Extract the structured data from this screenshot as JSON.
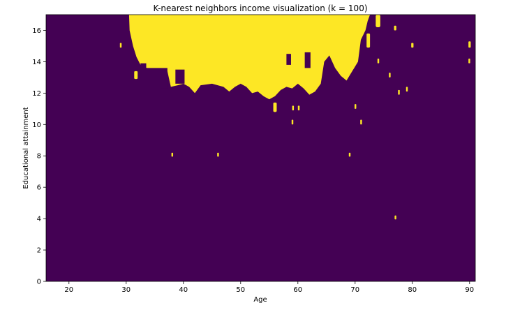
{
  "chart_data": {
    "type": "heatmap",
    "title": "K-nearest neighbors income visualization (k = 100)",
    "xlabel": "Age",
    "ylabel": "Educational attainment",
    "xlim": [
      16,
      91
    ],
    "ylim": [
      0,
      17
    ],
    "xticks": [
      20,
      30,
      40,
      50,
      60,
      70,
      80,
      90
    ],
    "yticks": [
      0,
      2,
      4,
      6,
      8,
      10,
      12,
      14,
      16
    ],
    "colors": {
      "low": "#440154",
      "high": "#fde725"
    },
    "grid": false,
    "high_region_upper_boundary": [
      [
        30.5,
        17
      ],
      [
        30.6,
        16.0
      ],
      [
        31.2,
        15.0
      ],
      [
        31.8,
        14.3
      ],
      [
        32.5,
        13.8
      ],
      [
        33.6,
        13.6
      ],
      [
        36.0,
        13.6
      ],
      [
        37.2,
        13.4
      ],
      [
        37.8,
        12.4
      ],
      [
        39.0,
        12.5
      ],
      [
        40.0,
        12.6
      ],
      [
        41.0,
        12.4
      ],
      [
        42.0,
        12.0
      ],
      [
        43.0,
        12.5
      ],
      [
        45.0,
        12.6
      ],
      [
        47.0,
        12.4
      ],
      [
        48.0,
        12.1
      ],
      [
        49.0,
        12.4
      ],
      [
        50.0,
        12.6
      ],
      [
        51.0,
        12.4
      ],
      [
        52.0,
        12.0
      ],
      [
        53.0,
        12.1
      ],
      [
        54.0,
        11.8
      ],
      [
        55.0,
        11.6
      ],
      [
        56.0,
        11.8
      ],
      [
        57.0,
        12.2
      ],
      [
        58.0,
        12.4
      ],
      [
        59.0,
        12.3
      ],
      [
        60.0,
        12.6
      ],
      [
        61.0,
        12.3
      ],
      [
        62.0,
        11.9
      ],
      [
        63.0,
        12.1
      ],
      [
        64.0,
        12.6
      ],
      [
        64.6,
        14.0
      ],
      [
        65.5,
        14.4
      ],
      [
        66.5,
        13.6
      ],
      [
        67.5,
        13.1
      ],
      [
        68.5,
        12.8
      ],
      [
        69.5,
        13.4
      ],
      [
        70.5,
        14.0
      ],
      [
        71.0,
        15.4
      ],
      [
        71.8,
        16.0
      ],
      [
        72.2,
        16.6
      ],
      [
        72.6,
        17
      ]
    ],
    "low_islands": [
      {
        "x": [
          32.5,
          33.5
        ],
        "y": [
          13.5,
          13.9
        ]
      },
      {
        "x": [
          36.0,
          37.2
        ],
        "y": [
          12.3,
          13.6
        ]
      },
      {
        "x": [
          38.6,
          40.2
        ],
        "y": [
          12.6,
          13.5
        ]
      },
      {
        "x": [
          58.0,
          58.8
        ],
        "y": [
          13.8,
          14.5
        ]
      },
      {
        "x": [
          61.2,
          62.2
        ],
        "y": [
          13.6,
          14.6
        ]
      }
    ],
    "high_islands": [
      {
        "x": [
          31.4,
          32.0
        ],
        "y": [
          12.9,
          13.4
        ]
      },
      {
        "x": [
          55.7,
          56.3
        ],
        "y": [
          10.8,
          11.4
        ]
      },
      {
        "x": [
          72.0,
          72.6
        ],
        "y": [
          14.9,
          15.8
        ]
      },
      {
        "x": [
          73.6,
          74.4
        ],
        "y": [
          16.2,
          17.0
        ]
      },
      {
        "x": [
          79.8,
          80.2
        ],
        "y": [
          14.9,
          15.2
        ]
      },
      {
        "x": [
          89.8,
          90.2
        ],
        "y": [
          14.9,
          15.3
        ]
      },
      {
        "x": [
          76.8,
          77.2
        ],
        "y": [
          16.0,
          16.3
        ]
      },
      {
        "x": [
          28.9,
          29.2
        ],
        "y": [
          14.9,
          15.2
        ]
      },
      {
        "x": [
          89.8,
          90.1
        ],
        "y": [
          13.9,
          14.2
        ]
      },
      {
        "x": [
          60.0,
          60.3
        ],
        "y": [
          10.9,
          11.2
        ]
      },
      {
        "x": [
          59.0,
          59.3
        ],
        "y": [
          10.9,
          11.2
        ]
      },
      {
        "x": [
          58.9,
          59.2
        ],
        "y": [
          10.0,
          10.3
        ]
      },
      {
        "x": [
          69.9,
          70.2
        ],
        "y": [
          11.0,
          11.3
        ]
      },
      {
        "x": [
          70.9,
          71.2
        ],
        "y": [
          10.0,
          10.3
        ]
      },
      {
        "x": [
          68.9,
          69.2
        ],
        "y": [
          7.95,
          8.2
        ]
      },
      {
        "x": [
          77.5,
          77.8
        ],
        "y": [
          11.9,
          12.2
        ]
      },
      {
        "x": [
          78.9,
          79.2
        ],
        "y": [
          12.1,
          12.4
        ]
      },
      {
        "x": [
          75.9,
          76.2
        ],
        "y": [
          13.0,
          13.3
        ]
      },
      {
        "x": [
          73.9,
          74.2
        ],
        "y": [
          13.9,
          14.2
        ]
      },
      {
        "x": [
          37.9,
          38.2
        ],
        "y": [
          7.95,
          8.2
        ]
      },
      {
        "x": [
          45.9,
          46.2
        ],
        "y": [
          7.95,
          8.2
        ]
      },
      {
        "x": [
          76.9,
          77.2
        ],
        "y": [
          3.95,
          4.2
        ]
      }
    ]
  }
}
